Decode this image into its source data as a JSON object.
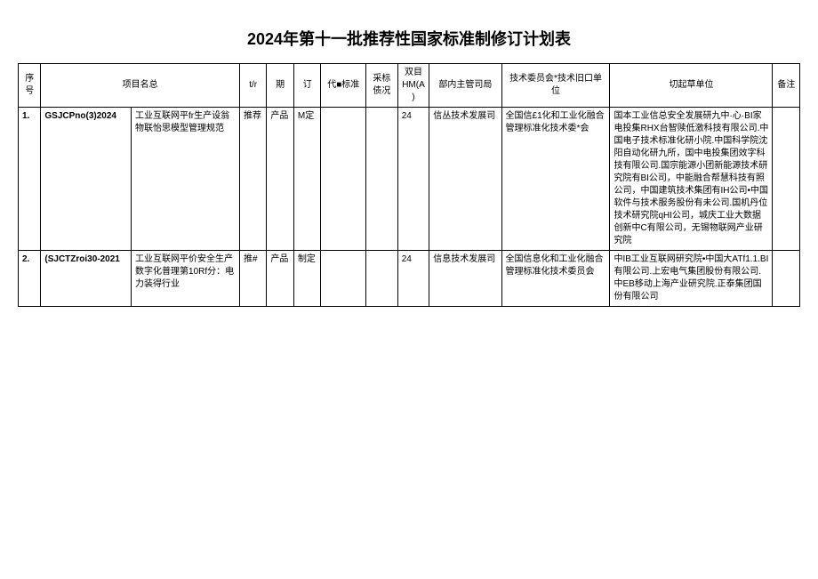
{
  "title": "2024年第十一批推荐性国家标准制修订计划表",
  "headers": {
    "seq": "序号",
    "name": "项目名总",
    "c4": "t/r",
    "c5": "期",
    "c6": "订",
    "c7": "代■标准",
    "c8": "采标债况",
    "c9": "双目HM(A)",
    "c10": "部内主管司局",
    "c11": "技术委员会*技术旧口单位",
    "c12": "切起草单位",
    "c13": "备注"
  },
  "rows": [
    {
      "seq": "1.",
      "id": "GSJCPno(3)2024",
      "name": "工业互联网平fr生产设翁物联怡思模型管理规范",
      "c4": "推荐",
      "c5": "产品",
      "c6": "M定",
      "c7": "",
      "c8": "",
      "c9": "24",
      "c10": "信丛技术发展司",
      "c11": "全国信£1化和工业化融合管理标准化技术委*会",
      "c12": "国本工业信总安全发展研九中·心·BI家电投集RHX台智赎低激科技有限公司.中国电子技术标准化研小院.中国科学院沈阳自动化研九所，国中电投集团效字科技有限公司.国宗能源小团新能源技术研究院有BI公司，中能融合帮慧科技有照公司，中国建筑技术集团有IH公司•中国软件与技术服务股份有未公司.国机丹位技术研究院qHI公司，城庆工业大数据创新中C有限公司，无锡物联网产业研究院",
      "c13": ""
    },
    {
      "seq": "2.",
      "id": "(SJCTZroi30-2021",
      "name": "工业互联网平价安全生产数字化普理第10Rf分：电力装得行业",
      "c4": "推#",
      "c5": "产品",
      "c6": "制定",
      "c7": "",
      "c8": "",
      "c9": "24",
      "c10": "信息技术发展司",
      "c11": "全国信息化和工业化融合管理标准化技术委员会",
      "c12": "\n中IB工业互联网研究院•中国大ATf1.1.BI有限公司.上宏电气集团股份有限公司.中EB移动上海产业研究院.正泰集团国份有限公司",
      "c13": ""
    }
  ]
}
